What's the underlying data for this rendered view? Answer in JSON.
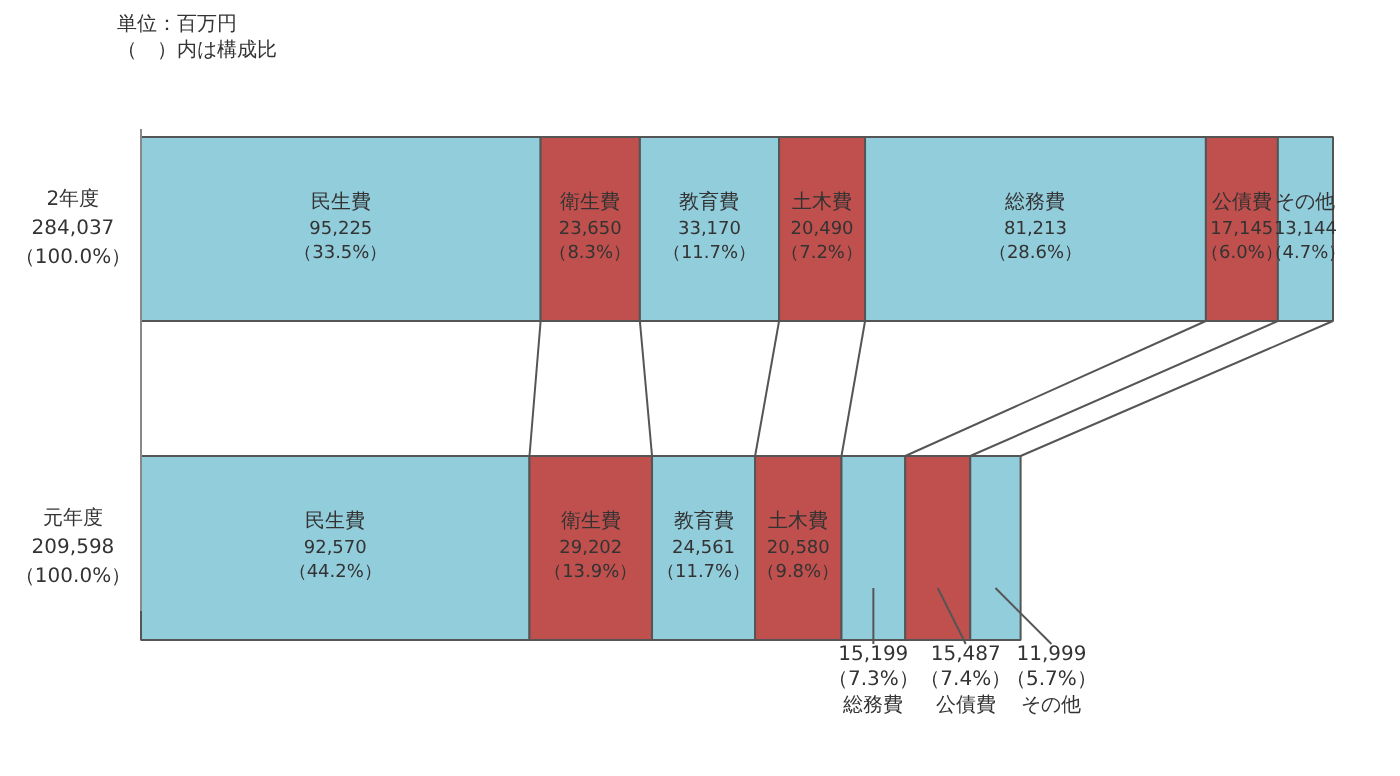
{
  "chart_data": {
    "type": "bar",
    "orientation": "horizontal",
    "stacked": true,
    "legend": false,
    "categories": [
      "2年度",
      "元年度"
    ],
    "totals": [
      "284,037\n（100.0%）",
      "209,598\n（100.0%）"
    ],
    "series": [
      {
        "name": "民生費",
        "color": "#92cddc",
        "values": [
          95225,
          92570
        ],
        "value_labels": [
          "95,225\n（33.5%）",
          "92,570\n（44.2%）"
        ]
      },
      {
        "name": "衛生費",
        "color": "#c0504d",
        "values": [
          23650,
          29202
        ],
        "value_labels": [
          "23,650\n（8.3%）",
          "29,202\n（13.9%）"
        ]
      },
      {
        "name": "教育費",
        "color": "#92cddc",
        "values": [
          33170,
          24561
        ],
        "value_labels": [
          "33,170\n（11.7%）",
          "24,561\n（11.7%）"
        ]
      },
      {
        "name": "土木費",
        "color": "#c0504d",
        "values": [
          20490,
          20580
        ],
        "value_labels": [
          "20,490\n（7.2%）",
          "20,580\n（9.8%）"
        ]
      },
      {
        "name": "総務費",
        "color": "#92cddc",
        "values": [
          81213,
          15199
        ],
        "value_labels": [
          "81,213\n（28.6%）",
          "15,199\n（7.3%）"
        ]
      },
      {
        "name": "公債費",
        "color": "#c0504d",
        "values": [
          17145,
          15487
        ],
        "value_labels": [
          "17,145\n（6.0%）",
          "15,487\n（7.4%）"
        ]
      },
      {
        "name": "その他",
        "color": "#92cddc",
        "values": [
          13144,
          11999
        ],
        "value_labels": [
          "13,144\n（4.7%）",
          "11,999\n（5.7%）"
        ]
      }
    ],
    "annotations": [
      "単位：百万円",
      "（　）内は構成比"
    ]
  }
}
